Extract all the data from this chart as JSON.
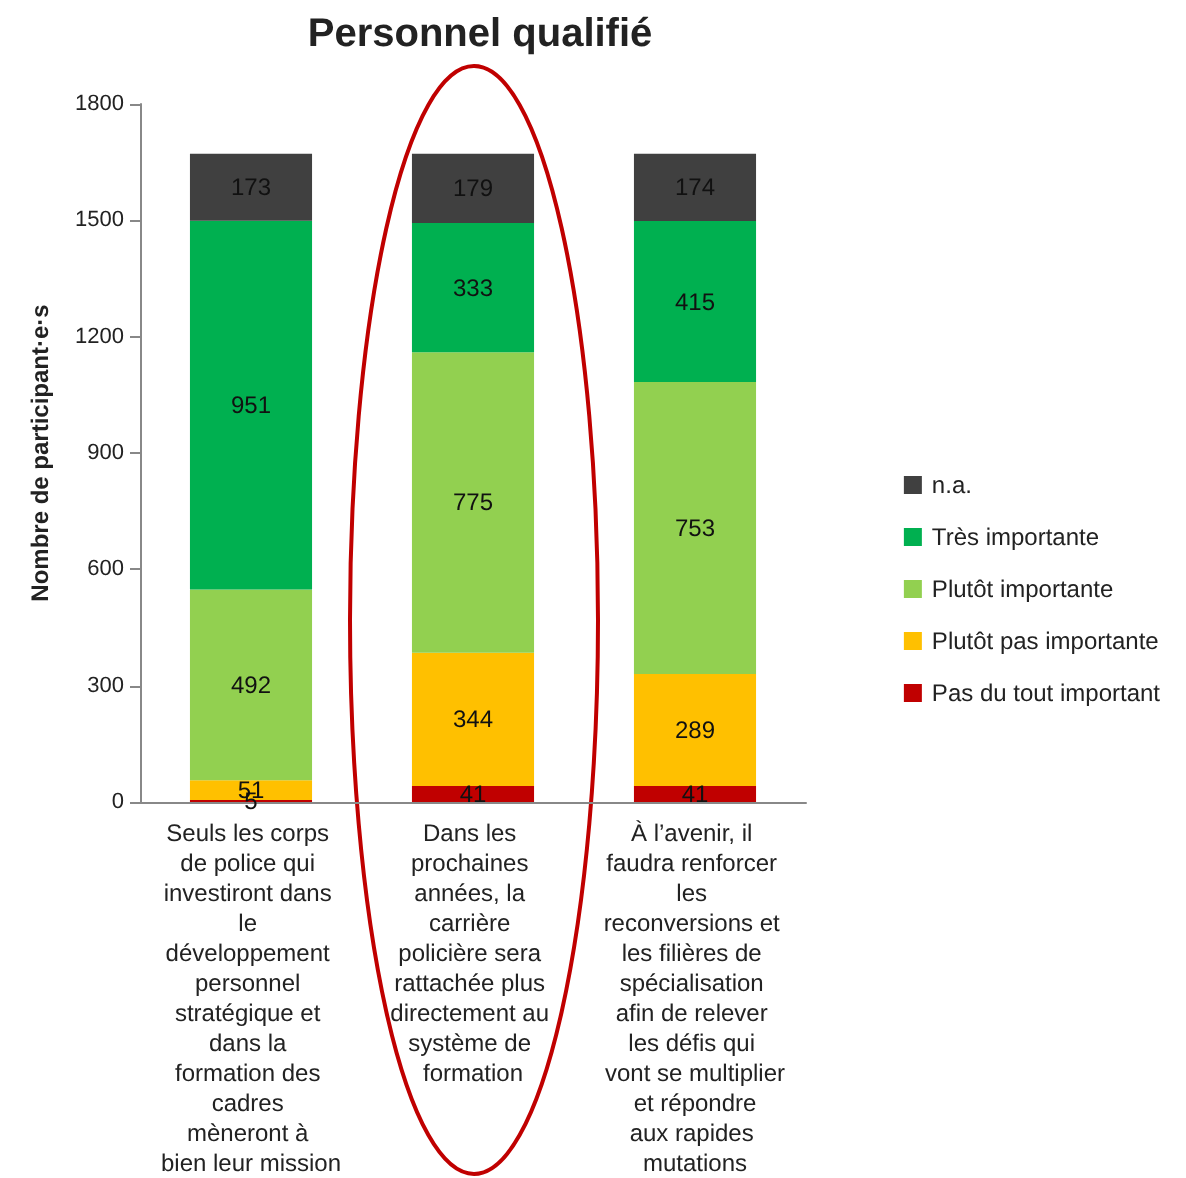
{
  "chart_data": {
    "type": "bar",
    "title": "Personnel qualifié",
    "ylabel": "Nombre de participant·e·s",
    "categories": [
      "Seuls les corps de police qui investiront dans le développement personnel stratégique et dans la formation des cadres mèneront à bien leur mission",
      "Dans les prochaines années, la carrière policière sera rattachée plus directement au système de formation",
      "À l’avenir, il faudra renforcer les reconversions et les filières de spécialisation afin de relever les défis qui vont se multiplier et répondre aux rapides mutations"
    ],
    "stacked": true,
    "data_labels": true,
    "grid": false,
    "legend": "right",
    "ylim": [
      0,
      1800
    ],
    "yticks": [
      0,
      300,
      600,
      900,
      1200,
      1500,
      1800
    ],
    "series": [
      {
        "name": "Pas du tout important",
        "color": "#c00000",
        "values": [
          5,
          41,
          41
        ]
      },
      {
        "name": "Plutôt pas importante",
        "color": "#ffc000",
        "values": [
          51,
          344,
          289
        ]
      },
      {
        "name": "Plutôt importante",
        "color": "#92d050",
        "values": [
          492,
          775,
          753
        ]
      },
      {
        "name": "Très importante",
        "color": "#00b050",
        "values": [
          951,
          333,
          415
        ]
      },
      {
        "name": "n.a.",
        "color": "#404040",
        "values": [
          173,
          179,
          174
        ]
      }
    ]
  }
}
